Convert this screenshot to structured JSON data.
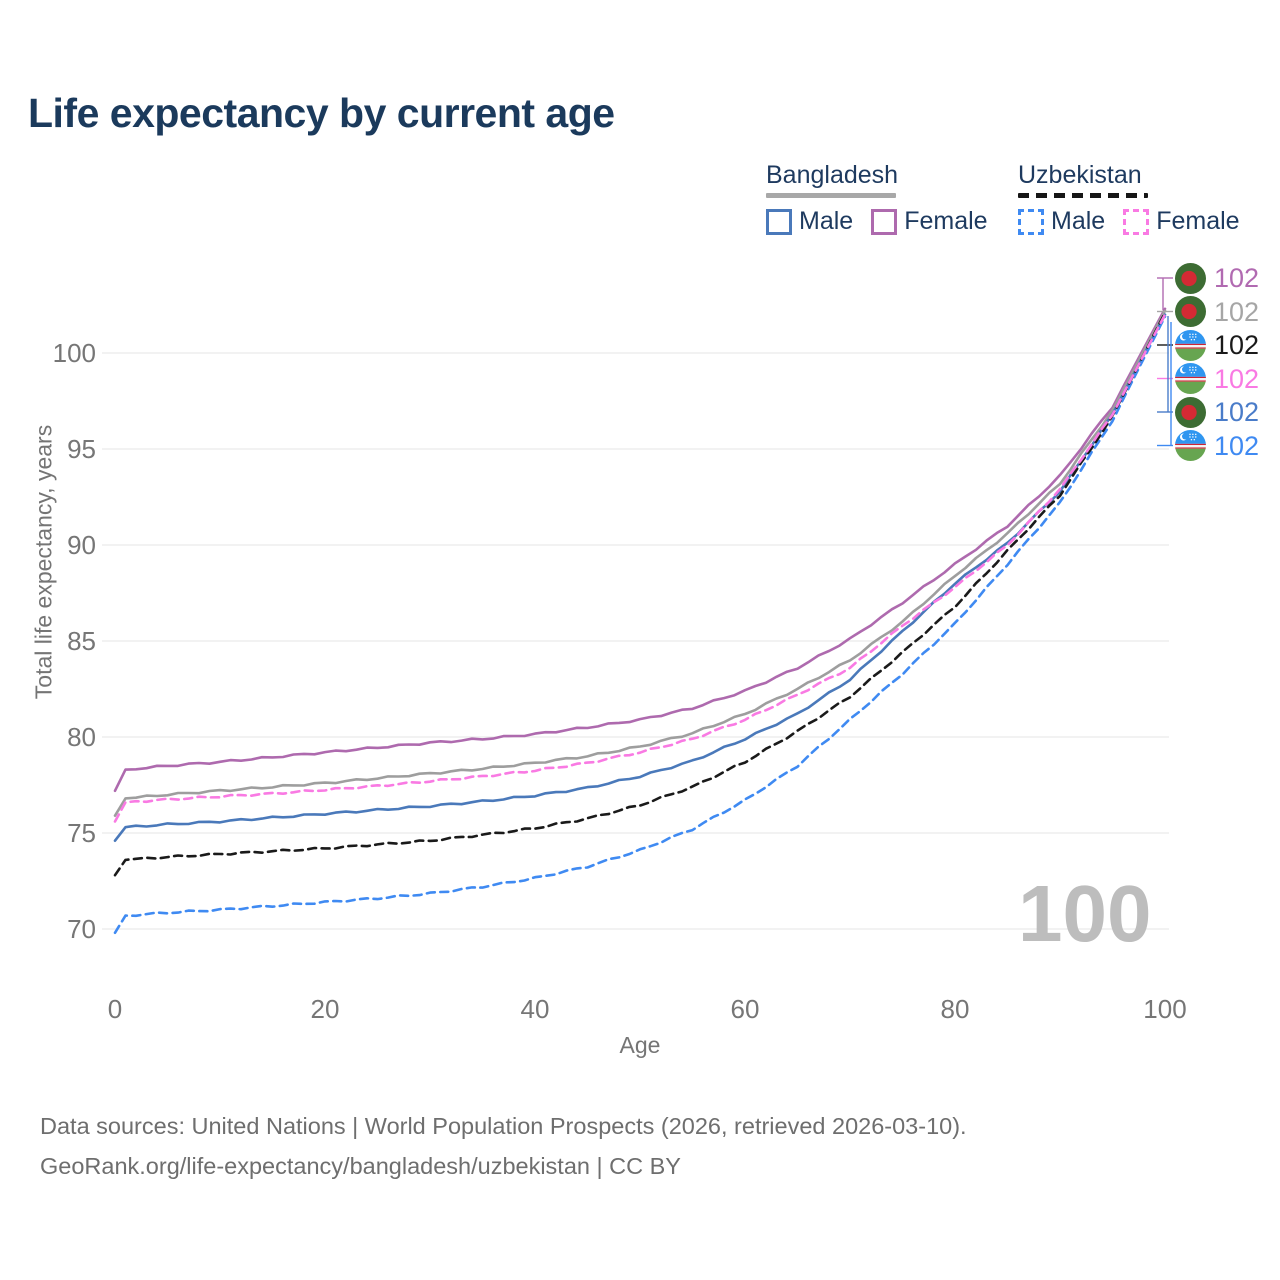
{
  "title": "Life expectancy by current age",
  "legend": {
    "bangladesh": {
      "label": "Bangladesh",
      "line_color": "#a8a8a8",
      "male_label": "Male",
      "male_color": "#4a79ba",
      "female_label": "Female",
      "female_color": "#ae6aae"
    },
    "uzbekistan": {
      "label": "Uzbekistan",
      "line_color": "#161616",
      "male_label": "Male",
      "male_color": "#3f8af2",
      "female_label": "Female",
      "female_color": "#f97ae3"
    }
  },
  "watermark": "100",
  "chart_data": {
    "type": "line",
    "title": "Life expectancy by current age",
    "xlabel": "Age",
    "ylabel": "Total life expectancy, years",
    "xlim": [
      0,
      100
    ],
    "ylim": [
      68.5,
      103.5
    ],
    "xticks": [
      0,
      20,
      40,
      60,
      80,
      100
    ],
    "yticks": [
      70,
      75,
      80,
      85,
      90,
      95,
      100
    ],
    "grid": "horizontal",
    "legend_position": "top-right",
    "x": [
      0,
      1,
      5,
      10,
      15,
      20,
      25,
      30,
      35,
      40,
      45,
      50,
      55,
      60,
      65,
      70,
      75,
      80,
      85,
      90,
      95,
      100
    ],
    "series": [
      {
        "id": "bangladesh-female",
        "name": "Bangladesh Female",
        "color": "#ae6aae",
        "dashed": false,
        "values": [
          77.2,
          78.3,
          78.5,
          78.7,
          78.95,
          79.2,
          79.45,
          79.7,
          79.9,
          80.15,
          80.5,
          80.9,
          81.5,
          82.4,
          83.6,
          85.1,
          87.0,
          89.0,
          91.0,
          93.6,
          97.2,
          102.3
        ]
      },
      {
        "id": "bangladesh-all",
        "name": "Bangladesh (both sexes)",
        "color": "#9e9e9e",
        "dashed": false,
        "values": [
          75.9,
          76.8,
          77.0,
          77.2,
          77.4,
          77.6,
          77.85,
          78.1,
          78.35,
          78.65,
          79.0,
          79.5,
          80.2,
          81.2,
          82.5,
          84.0,
          86.0,
          88.4,
          90.6,
          93.2,
          97.0,
          102.2
        ]
      },
      {
        "id": "bangladesh-male",
        "name": "Bangladesh Male",
        "color": "#4a79ba",
        "dashed": false,
        "values": [
          74.6,
          75.3,
          75.45,
          75.6,
          75.8,
          76.0,
          76.2,
          76.4,
          76.65,
          76.95,
          77.35,
          77.95,
          78.75,
          79.9,
          81.2,
          83.0,
          85.5,
          88.0,
          90.1,
          92.8,
          96.8,
          102.0
        ]
      },
      {
        "id": "uzbekistan-male",
        "name": "Uzbekistan Male",
        "color": "#3f8af2",
        "dashed": true,
        "values": [
          69.8,
          70.7,
          70.85,
          71.0,
          71.2,
          71.4,
          71.6,
          71.85,
          72.2,
          72.65,
          73.25,
          74.1,
          75.2,
          76.7,
          78.5,
          80.9,
          83.3,
          85.9,
          89.0,
          92.2,
          96.5,
          101.9
        ]
      },
      {
        "id": "uzbekistan-all",
        "name": "Uzbekistan (both sexes)",
        "color": "#1a1a1a",
        "dashed": true,
        "values": [
          72.8,
          73.6,
          73.75,
          73.9,
          74.05,
          74.2,
          74.4,
          74.6,
          74.9,
          75.25,
          75.75,
          76.45,
          77.4,
          78.7,
          80.3,
          82.1,
          84.4,
          86.8,
          89.7,
          92.6,
          96.7,
          102.1
        ]
      },
      {
        "id": "uzbekistan-female",
        "name": "Uzbekistan Female",
        "color": "#f97ae3",
        "dashed": true,
        "values": [
          75.6,
          76.6,
          76.75,
          76.9,
          77.05,
          77.25,
          77.45,
          77.7,
          77.95,
          78.25,
          78.65,
          79.2,
          79.9,
          80.9,
          82.2,
          83.6,
          85.8,
          87.8,
          90.0,
          92.9,
          96.8,
          102.0
        ]
      }
    ]
  },
  "right_labels": [
    {
      "value": "102",
      "color": "#b16ab1",
      "icon": "bangladesh-flag-icon"
    },
    {
      "value": "102",
      "color": "#a6a6a6",
      "icon": "bangladesh-flag-icon"
    },
    {
      "value": "102",
      "color": "#1a1a1a",
      "icon": "uzbekistan-flag-icon"
    },
    {
      "value": "102",
      "color": "#f97ae3",
      "icon": "uzbekistan-flag-icon"
    },
    {
      "value": "102",
      "color": "#4a7cc9",
      "icon": "bangladesh-flag-icon"
    },
    {
      "value": "102",
      "color": "#3f8af2",
      "icon": "uzbekistan-flag-icon"
    }
  ],
  "flag_colors": {
    "bangladesh": {
      "field": "#3d6c33",
      "disc": "#d42a34"
    },
    "uzbekistan": {
      "sky": "#2f96f0",
      "stripe": "#cf2334",
      "white": "#f4f4f4",
      "green": "#67a550"
    }
  },
  "footer": {
    "line1": "Data sources: United Nations | World Population Prospects (2026, retrieved 2026-03-10).",
    "line2": "GeoRank.org/life-expectancy/bangladesh/uzbekistan | CC BY"
  }
}
